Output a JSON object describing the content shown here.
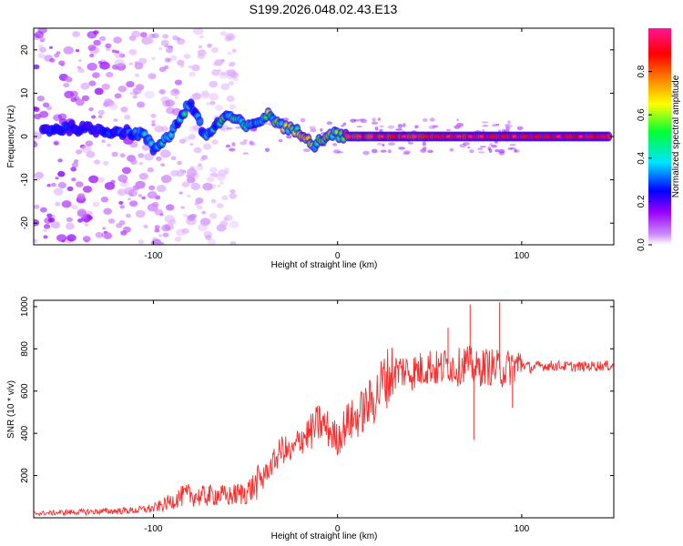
{
  "figure_title": "S199.2026.048.02.43.E13",
  "chart_data": [
    {
      "type": "heatmap",
      "title": "S199.2026.048.02.43.E13",
      "xlabel": "Height of straight line (km)",
      "ylabel": "Frequency (Hz)",
      "xlim": [
        -165,
        150
      ],
      "ylim": [
        -25,
        25
      ],
      "xticks": [
        -100,
        0,
        100
      ],
      "yticks": [
        -20,
        -10,
        0,
        10,
        20
      ],
      "xtick_labels": [
        "-100",
        "0",
        "100"
      ],
      "ytick_labels": [
        "-20",
        "-10",
        "0",
        "10",
        "20"
      ],
      "colorbar": {
        "label": "Normalized spectral amplitude",
        "range": [
          0,
          1
        ],
        "ticks": [
          0.0,
          0.2,
          0.4,
          0.6,
          0.8
        ],
        "tick_labels": [
          "0.0",
          "0.2",
          "0.4",
          "0.6",
          "0.8"
        ],
        "colormap": [
          "#ffffff",
          "#9a00ff",
          "#0000ff",
          "#00e5ff",
          "#00ff33",
          "#ffff00",
          "#ff8800",
          "#ff0000",
          "#ff1493"
        ]
      },
      "ridge": [
        {
          "x": -160,
          "freq": 1.5,
          "amp": 0.25
        },
        {
          "x": -145,
          "freq": 2.0,
          "amp": 0.3
        },
        {
          "x": -130,
          "freq": 1.5,
          "amp": 0.3
        },
        {
          "x": -115,
          "freq": 1.0,
          "amp": 0.3
        },
        {
          "x": -105,
          "freq": 0.5,
          "amp": 0.35
        },
        {
          "x": -100,
          "freq": -3.0,
          "amp": 0.35
        },
        {
          "x": -90,
          "freq": 1.0,
          "amp": 0.4
        },
        {
          "x": -80,
          "freq": 8.0,
          "amp": 0.45
        },
        {
          "x": -72,
          "freq": 0.0,
          "amp": 0.4
        },
        {
          "x": -60,
          "freq": 5.0,
          "amp": 0.5
        },
        {
          "x": -48,
          "freq": 2.0,
          "amp": 0.45
        },
        {
          "x": -38,
          "freq": 5.0,
          "amp": 0.55
        },
        {
          "x": -28,
          "freq": 2.0,
          "amp": 0.6
        },
        {
          "x": -18,
          "freq": 0.5,
          "amp": 0.65
        },
        {
          "x": -12,
          "freq": -2.0,
          "amp": 0.55
        },
        {
          "x": -5,
          "freq": 0.8,
          "amp": 0.7
        },
        {
          "x": 5,
          "freq": 0.0,
          "amp": 0.85
        },
        {
          "x": 50,
          "freq": 0.0,
          "amp": 0.9
        },
        {
          "x": 100,
          "freq": 0.0,
          "amp": 0.95
        },
        {
          "x": 148,
          "freq": 0.0,
          "amp": 1.0
        }
      ]
    },
    {
      "type": "line",
      "xlabel": "Height of straight line (km)",
      "ylabel": "SNR (10 * v/v)",
      "xlim": [
        -165,
        150
      ],
      "ylim": [
        0,
        1030
      ],
      "xticks": [
        -100,
        0,
        100
      ],
      "yticks": [
        200,
        400,
        600,
        800,
        1000
      ],
      "xtick_labels": [
        "-100",
        "0",
        "100"
      ],
      "ytick_labels": [
        "200",
        "400",
        "600",
        "800",
        "1000"
      ],
      "series": [
        {
          "name": "SNR",
          "color": "#ff2a2a",
          "x": [
            -165,
            -150,
            -130,
            -110,
            -100,
            -95,
            -90,
            -85,
            -80,
            -75,
            -70,
            -65,
            -60,
            -55,
            -50,
            -45,
            -40,
            -35,
            -30,
            -25,
            -20,
            -15,
            -10,
            -5,
            0,
            5,
            10,
            15,
            20,
            25,
            30,
            35,
            40,
            45,
            50,
            55,
            60,
            65,
            70,
            75,
            80,
            85,
            90,
            95,
            100,
            105,
            110,
            120,
            130,
            140,
            150
          ],
          "values": [
            20,
            25,
            30,
            35,
            45,
            60,
            80,
            100,
            110,
            100,
            105,
            110,
            100,
            110,
            120,
            150,
            200,
            260,
            330,
            300,
            380,
            400,
            450,
            420,
            370,
            450,
            470,
            520,
            560,
            650,
            690,
            700,
            690,
            700,
            720,
            700,
            730,
            710,
            740,
            700,
            720,
            710,
            700,
            720,
            730,
            710,
            720,
            720,
            715,
            720,
            720
          ],
          "peaks": [
            {
              "x": 60,
              "y": 900
            },
            {
              "x": 72,
              "y": 1010
            },
            {
              "x": 74,
              "y": 370
            },
            {
              "x": 88,
              "y": 1020
            },
            {
              "x": 95,
              "y": 520
            }
          ]
        }
      ]
    }
  ]
}
